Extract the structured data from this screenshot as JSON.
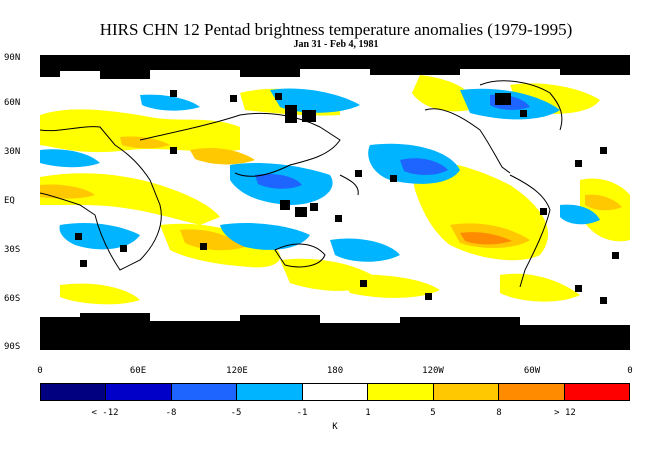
{
  "title": "HIRS CHN 12 Pentad brightness temperature anomalies (1979-1995)",
  "subtitle": "Jan 31 - Feb 4, 1981",
  "lat_labels": [
    "90N",
    "60N",
    "30N",
    "EQ",
    "30S",
    "60S",
    "90S"
  ],
  "lon_labels": [
    "0",
    "60E",
    "120E",
    "180",
    "120W",
    "60W",
    "0"
  ],
  "colorbar": {
    "colors": [
      "#000080",
      "#0000c8",
      "#1e64ff",
      "#00b4ff",
      "#ffffff",
      "#ffff00",
      "#ffc800",
      "#ff8c00",
      "#ff0000"
    ],
    "labels": [
      "< -12",
      "-8",
      "-5",
      "-1",
      "1",
      "5",
      "8",
      "> 12"
    ],
    "unit": "K"
  }
}
